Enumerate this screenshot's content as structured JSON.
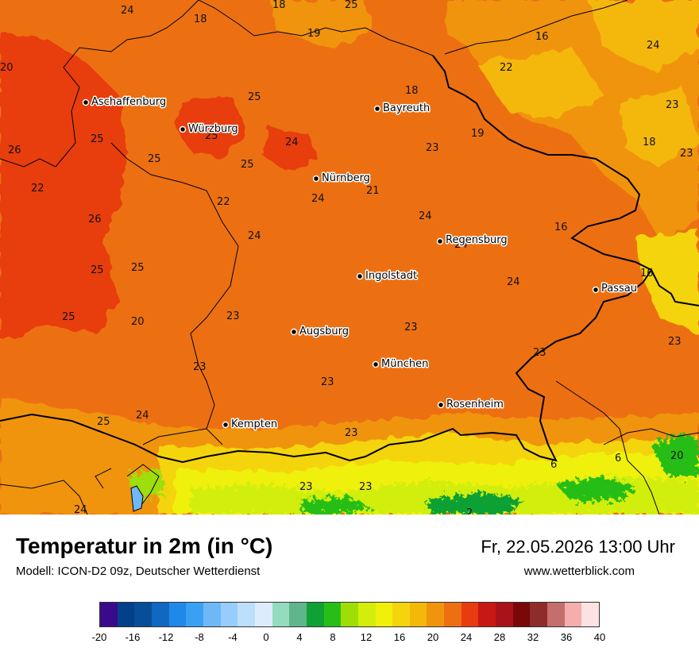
{
  "title": "Temperatur in 2m (in °C)",
  "subtitle": "Modell: ICON-D2 09z, Deutscher Wetterdienst",
  "datetime": "Fr, 22.05.2026 13:00 Uhr",
  "website": "www.wetterblick.com",
  "cities": [
    {
      "name": "Aschaffenburg"
    },
    {
      "name": "Würzburg"
    },
    {
      "name": "Bayreuth"
    },
    {
      "name": "Nürnberg"
    },
    {
      "name": "Regensburg"
    },
    {
      "name": "Ingolstadt"
    },
    {
      "name": "Passau"
    },
    {
      "name": "Augsburg"
    },
    {
      "name": "München"
    },
    {
      "name": "Rosenheim"
    },
    {
      "name": "Kempten"
    }
  ],
  "temperature_labels": [
    "24",
    "18",
    "18",
    "25",
    "19",
    "16",
    "24",
    "20",
    "22",
    "18",
    "23",
    "25",
    "25",
    "19",
    "23",
    "25",
    "24",
    "18",
    "26",
    "25",
    "23",
    "22",
    "25",
    "22",
    "21",
    "24",
    "24",
    "26",
    "16",
    "24",
    "24",
    "25",
    "25",
    "16",
    "24",
    "25",
    "20",
    "23",
    "23",
    "23",
    "23",
    "23",
    "23",
    "25",
    "24",
    "20",
    "6",
    "6",
    "23",
    "23",
    "24",
    "2"
  ],
  "legend": {
    "colors": [
      "#3a0a8c",
      "#03408a",
      "#064f98",
      "#1068c0",
      "#1f88e8",
      "#3aa0f4",
      "#6eb8f8",
      "#96cdfb",
      "#bcdffc",
      "#dcecfd",
      "#94dcbe",
      "#5fb58c",
      "#10a136",
      "#28be18",
      "#9ede08",
      "#d2ee0a",
      "#f0f00a",
      "#f4d40c",
      "#f4b80a",
      "#f09410",
      "#ec7012",
      "#e83c10",
      "#c81814",
      "#a81218",
      "#7a0808",
      "#8e2c2c",
      "#c46e6e",
      "#f4aeae",
      "#fde2e2"
    ],
    "ticks": [
      "-20",
      "-16",
      "-12",
      "-8",
      "-4",
      "0",
      "4",
      "8",
      "12",
      "16",
      "20",
      "24",
      "28",
      "32",
      "36",
      "40"
    ]
  }
}
